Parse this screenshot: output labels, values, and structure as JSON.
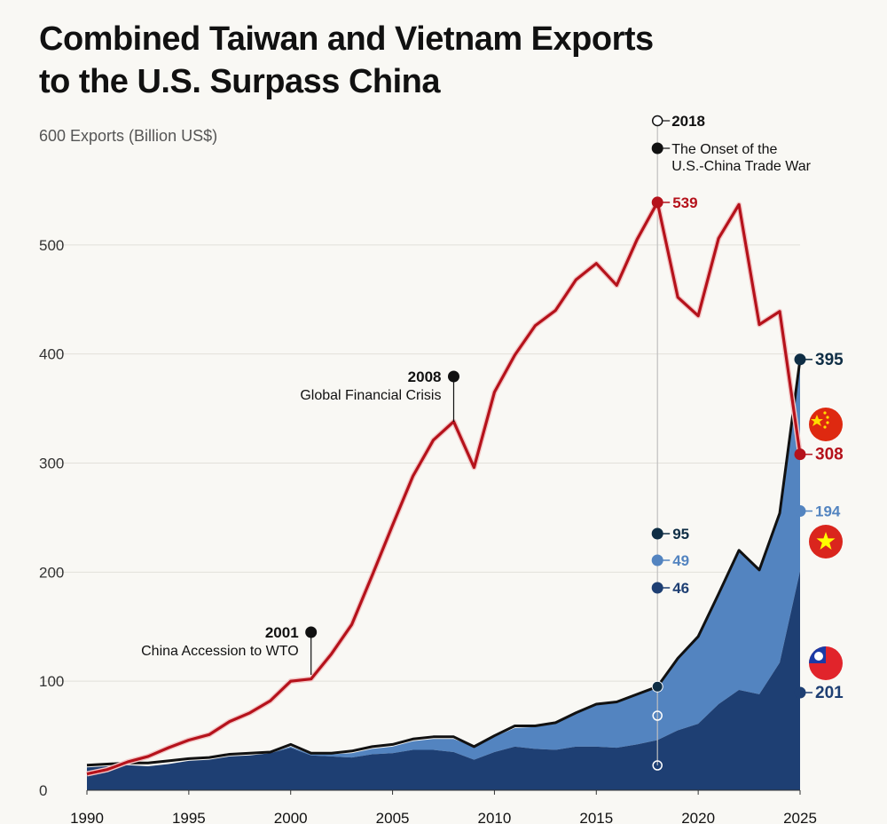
{
  "title": {
    "line1": "Combined Taiwan and Vietnam Exports",
    "line2": "to the U.S. Surpass China"
  },
  "chart_data": {
    "type": "area",
    "title": "Combined Taiwan and Vietnam Exports to the U.S. Surpass China",
    "ylabel": "Exports (Billion US$)",
    "xlabel": "",
    "xlim": [
      1990,
      2025
    ],
    "ylim": [
      0,
      600
    ],
    "x_ticks": [
      "1990",
      "1995",
      "2000",
      "2005",
      "2010",
      "2015",
      "2020",
      "2025"
    ],
    "y_ticks": [
      "0",
      "100",
      "200",
      "300",
      "400",
      "500",
      "600"
    ],
    "grid": true,
    "x": [
      1990,
      1991,
      1992,
      1993,
      1994,
      1995,
      1996,
      1997,
      1998,
      1999,
      2000,
      2001,
      2002,
      2003,
      2004,
      2005,
      2006,
      2007,
      2008,
      2009,
      2010,
      2011,
      2012,
      2013,
      2014,
      2015,
      2016,
      2017,
      2018,
      2019,
      2020,
      2021,
      2022,
      2023,
      2024,
      2025
    ],
    "series": [
      {
        "name": "China",
        "kind": "line",
        "color": "#b5121b",
        "values": [
          15,
          19,
          26,
          31,
          39,
          46,
          51,
          63,
          71,
          82,
          100,
          102,
          125,
          152,
          197,
          243,
          288,
          321,
          338,
          296,
          365,
          399,
          426,
          440,
          468,
          483,
          463,
          505,
          539,
          452,
          435,
          506,
          537,
          427,
          439,
          308
        ]
      },
      {
        "name": "Taiwan + Vietnam (combined)",
        "kind": "line",
        "color": "#111111",
        "values": [
          23,
          24,
          25,
          25,
          27,
          29,
          30,
          33,
          34,
          35,
          42,
          34,
          34,
          36,
          40,
          42,
          47,
          49,
          49,
          40,
          50,
          59,
          59,
          62,
          71,
          79,
          81,
          88,
          95,
          121,
          141,
          180,
          220,
          202,
          254,
          395
        ]
      },
      {
        "name": "Vietnam",
        "kind": "area",
        "color": "#5384c0",
        "values": [
          0,
          0,
          0,
          0,
          0,
          0,
          0,
          0,
          0,
          0,
          1,
          1,
          2,
          4,
          5,
          6,
          8,
          10,
          12,
          12,
          14,
          17,
          20,
          24,
          30,
          38,
          42,
          46,
          49,
          66,
          79,
          101,
          127,
          114,
          136,
          194
        ]
      },
      {
        "name": "Taiwan",
        "kind": "area",
        "color": "#1e3f73",
        "values": [
          21,
          22,
          23,
          22,
          24,
          27,
          28,
          31,
          32,
          34,
          39,
          32,
          31,
          30,
          33,
          34,
          37,
          37,
          35,
          28,
          35,
          40,
          38,
          37,
          40,
          40,
          39,
          42,
          46,
          55,
          61,
          79,
          92,
          88,
          117,
          201
        ]
      }
    ],
    "annotations": [
      {
        "year": 2001,
        "year_label": "2001",
        "text": "China Accession to WTO"
      },
      {
        "year": 2008,
        "year_label": "2008",
        "text": "Global Financial Crisis"
      },
      {
        "year": 2018,
        "year_label": "2018",
        "text": "The Onset of the U.S.-China Trade War"
      }
    ],
    "labels_2018": {
      "china": "539",
      "combined": "95",
      "vietnam": "49",
      "taiwan": "46"
    },
    "labels_2025": {
      "combined": "395",
      "china": "308",
      "vietnam": "194",
      "taiwan": "201"
    },
    "legend_flags": [
      "china-flag",
      "vietnam-flag",
      "taiwan-flag"
    ]
  },
  "colors": {
    "china": "#b5121b",
    "combined": "#111111",
    "vietnam": "#5384c0",
    "taiwan": "#1e3f73",
    "grid": "#e2e0da",
    "background": "#f9f8f4"
  }
}
